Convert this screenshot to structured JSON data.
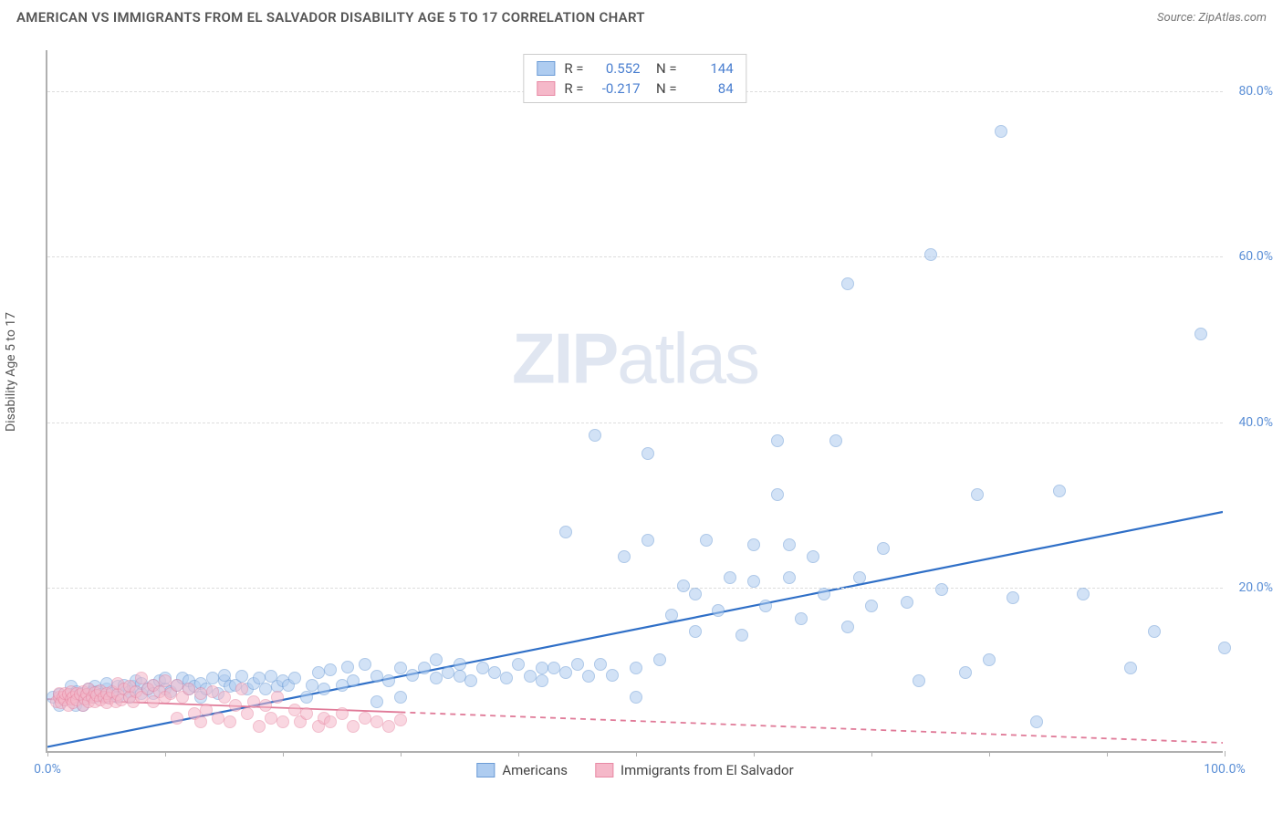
{
  "title": "AMERICAN VS IMMIGRANTS FROM EL SALVADOR DISABILITY AGE 5 TO 17 CORRELATION CHART",
  "source": "Source: ZipAtlas.com",
  "ylabel": "Disability Age 5 to 17",
  "watermark_bold": "ZIP",
  "watermark_light": "atlas",
  "chart": {
    "type": "scatter",
    "background_color": "#ffffff",
    "grid_color": "#dddddd",
    "axis_color": "#b0b0b0",
    "label_color": "#5b8fd6",
    "xlim": [
      0,
      100
    ],
    "ylim": [
      0,
      85
    ],
    "xticks": [
      0,
      10,
      20,
      30,
      40,
      50,
      60,
      70,
      80,
      90,
      100
    ],
    "xtick_labels": {
      "0": "0.0%",
      "100": "100.0%"
    },
    "yticks": [
      20,
      40,
      60,
      80
    ],
    "ytick_labels": {
      "20": "20.0%",
      "40": "40.0%",
      "60": "60.0%",
      "80": "80.0%"
    },
    "marker_radius": 7,
    "marker_stroke_width": 1.2,
    "series": [
      {
        "name": "Americans",
        "fill": "#aeccf0",
        "stroke": "#6c9cd6",
        "fill_opacity": 0.55,
        "R": "0.552",
        "N": "144",
        "trend": {
          "x1": 0,
          "y1": 0.5,
          "x2": 100,
          "y2": 29,
          "color": "#2f6fc7",
          "width": 2.2,
          "dash": "none"
        },
        "points": [
          [
            0.5,
            6.5
          ],
          [
            1,
            6.8
          ],
          [
            1,
            5.5
          ],
          [
            1.5,
            6.2
          ],
          [
            2,
            6.8
          ],
          [
            2,
            7.8
          ],
          [
            2.4,
            5.5
          ],
          [
            2.5,
            7.2
          ],
          [
            3,
            6.5
          ],
          [
            3,
            5.5
          ],
          [
            3,
            7.0
          ],
          [
            3.3,
            6.8
          ],
          [
            3.5,
            7.5
          ],
          [
            3.8,
            7.2
          ],
          [
            4,
            6.5
          ],
          [
            4,
            7.8
          ],
          [
            4.3,
            7.2
          ],
          [
            4.5,
            6.8
          ],
          [
            5,
            7.5
          ],
          [
            5,
            6.5
          ],
          [
            5,
            8.2
          ],
          [
            5.5,
            7.0
          ],
          [
            6,
            7.8
          ],
          [
            6,
            6.5
          ],
          [
            6.5,
            8.0
          ],
          [
            7,
            7.2
          ],
          [
            7,
            6.5
          ],
          [
            7.3,
            7.8
          ],
          [
            7.5,
            8.5
          ],
          [
            8,
            7.0
          ],
          [
            8,
            8.2
          ],
          [
            8.5,
            7.5
          ],
          [
            9,
            8.0
          ],
          [
            9,
            7.0
          ],
          [
            9.5,
            8.5
          ],
          [
            10,
            7.5
          ],
          [
            10,
            8.8
          ],
          [
            10.5,
            7.2
          ],
          [
            11,
            8.0
          ],
          [
            11.5,
            8.8
          ],
          [
            12,
            7.5
          ],
          [
            12,
            8.5
          ],
          [
            12.5,
            7.8
          ],
          [
            13,
            6.5
          ],
          [
            13,
            8.2
          ],
          [
            13.5,
            7.5
          ],
          [
            14,
            8.8
          ],
          [
            14.5,
            7.0
          ],
          [
            15,
            8.5
          ],
          [
            15,
            9.2
          ],
          [
            15.5,
            7.8
          ],
          [
            16,
            8.0
          ],
          [
            16.5,
            9.0
          ],
          [
            17,
            7.5
          ],
          [
            17.5,
            8.2
          ],
          [
            18,
            8.8
          ],
          [
            18.5,
            7.5
          ],
          [
            19,
            9.0
          ],
          [
            19.5,
            7.8
          ],
          [
            20,
            8.5
          ],
          [
            20.5,
            8.0
          ],
          [
            21,
            8.8
          ],
          [
            22,
            6.5
          ],
          [
            22.5,
            8.0
          ],
          [
            23,
            9.5
          ],
          [
            23.5,
            7.5
          ],
          [
            24,
            9.8
          ],
          [
            25,
            8.0
          ],
          [
            25.5,
            10.2
          ],
          [
            26,
            8.5
          ],
          [
            27,
            10.5
          ],
          [
            28,
            6.0
          ],
          [
            28,
            9.0
          ],
          [
            29,
            8.5
          ],
          [
            30,
            10.0
          ],
          [
            30,
            6.5
          ],
          [
            31,
            9.2
          ],
          [
            32,
            10.0
          ],
          [
            33,
            11.0
          ],
          [
            33,
            8.8
          ],
          [
            34,
            9.5
          ],
          [
            35,
            9.0
          ],
          [
            35,
            10.5
          ],
          [
            36,
            8.5
          ],
          [
            37,
            10.0
          ],
          [
            38,
            9.5
          ],
          [
            39,
            8.8
          ],
          [
            40,
            10.5
          ],
          [
            41,
            9.0
          ],
          [
            42,
            10.0
          ],
          [
            42,
            8.5
          ],
          [
            43,
            10.0
          ],
          [
            44,
            9.5
          ],
          [
            44,
            26.5
          ],
          [
            45,
            10.5
          ],
          [
            46,
            9.0
          ],
          [
            46.5,
            38.2
          ],
          [
            47,
            10.5
          ],
          [
            48,
            9.2
          ],
          [
            49,
            23.5
          ],
          [
            50,
            10.0
          ],
          [
            50,
            6.5
          ],
          [
            51,
            25.5
          ],
          [
            51,
            36.0
          ],
          [
            52,
            11.0
          ],
          [
            53,
            16.5
          ],
          [
            54,
            20.0
          ],
          [
            55,
            14.5
          ],
          [
            55,
            19.0
          ],
          [
            56,
            25.5
          ],
          [
            57,
            17.0
          ],
          [
            58,
            21.0
          ],
          [
            59,
            14.0
          ],
          [
            60,
            20.5
          ],
          [
            60,
            25.0
          ],
          [
            61,
            17.5
          ],
          [
            62,
            31.0
          ],
          [
            62,
            37.5
          ],
          [
            63,
            21.0
          ],
          [
            63,
            25.0
          ],
          [
            64,
            16.0
          ],
          [
            65,
            23.5
          ],
          [
            66,
            19.0
          ],
          [
            67,
            37.5
          ],
          [
            68,
            15.0
          ],
          [
            68,
            56.5
          ],
          [
            69,
            21.0
          ],
          [
            70,
            17.5
          ],
          [
            71,
            24.5
          ],
          [
            73,
            18.0
          ],
          [
            74,
            8.5
          ],
          [
            75,
            60.0
          ],
          [
            76,
            19.5
          ],
          [
            78,
            9.5
          ],
          [
            79,
            31.0
          ],
          [
            80,
            11.0
          ],
          [
            81,
            75.0
          ],
          [
            82,
            18.5
          ],
          [
            84,
            3.5
          ],
          [
            86,
            31.5
          ],
          [
            88,
            19.0
          ],
          [
            92,
            10.0
          ],
          [
            94,
            14.5
          ],
          [
            98,
            50.5
          ],
          [
            100,
            12.5
          ]
        ]
      },
      {
        "name": "Immigrants from El Salvador",
        "fill": "#f5b8c9",
        "stroke": "#e88aa5",
        "fill_opacity": 0.55,
        "R": "-0.217",
        "N": "84",
        "trend": {
          "x1": 0,
          "y1": 6.3,
          "x2": 100,
          "y2": 1.0,
          "color": "#e07a98",
          "width": 1.8,
          "dash": "solid_then_dash",
          "solid_until": 30
        },
        "points": [
          [
            0.8,
            6.0
          ],
          [
            1.0,
            6.5
          ],
          [
            1.0,
            7.0
          ],
          [
            1.2,
            5.8
          ],
          [
            1.3,
            6.5
          ],
          [
            1.5,
            6.2
          ],
          [
            1.5,
            7.0
          ],
          [
            1.8,
            6.8
          ],
          [
            1.8,
            5.5
          ],
          [
            2.0,
            6.3
          ],
          [
            2.0,
            7.2
          ],
          [
            2.2,
            6.5
          ],
          [
            2.2,
            5.8
          ],
          [
            2.5,
            7.0
          ],
          [
            2.5,
            6.2
          ],
          [
            2.8,
            6.8
          ],
          [
            3.0,
            5.5
          ],
          [
            3.0,
            7.2
          ],
          [
            3.2,
            6.3
          ],
          [
            3.3,
            6.8
          ],
          [
            3.5,
            6.0
          ],
          [
            3.5,
            7.5
          ],
          [
            3.8,
            6.5
          ],
          [
            4.0,
            6.0
          ],
          [
            4.0,
            7.1
          ],
          [
            4.2,
            6.7
          ],
          [
            4.5,
            6.2
          ],
          [
            4.5,
            7.3
          ],
          [
            4.8,
            6.5
          ],
          [
            5.0,
            5.8
          ],
          [
            5.0,
            7.0
          ],
          [
            5.3,
            6.4
          ],
          [
            5.5,
            7.2
          ],
          [
            5.8,
            6.0
          ],
          [
            6.0,
            6.8
          ],
          [
            6.0,
            8.2
          ],
          [
            6.3,
            6.2
          ],
          [
            6.5,
            7.5
          ],
          [
            7.0,
            6.5
          ],
          [
            7.0,
            7.8
          ],
          [
            7.3,
            6.0
          ],
          [
            7.5,
            7.2
          ],
          [
            8.0,
            8.8
          ],
          [
            8.0,
            6.5
          ],
          [
            8.5,
            7.5
          ],
          [
            9.0,
            6.0
          ],
          [
            9.0,
            8.0
          ],
          [
            9.5,
            7.2
          ],
          [
            10.0,
            6.5
          ],
          [
            10.0,
            8.5
          ],
          [
            10.5,
            7.0
          ],
          [
            11.0,
            4.0
          ],
          [
            11.0,
            8.0
          ],
          [
            11.5,
            6.5
          ],
          [
            12.0,
            7.5
          ],
          [
            12.5,
            4.5
          ],
          [
            13.0,
            7.0
          ],
          [
            13.0,
            3.5
          ],
          [
            13.5,
            5.0
          ],
          [
            14.0,
            7.2
          ],
          [
            14.5,
            4.0
          ],
          [
            15.0,
            6.5
          ],
          [
            15.5,
            3.5
          ],
          [
            16.0,
            5.5
          ],
          [
            16.5,
            7.5
          ],
          [
            17.0,
            4.5
          ],
          [
            17.5,
            6.0
          ],
          [
            18.0,
            3.0
          ],
          [
            18.5,
            5.5
          ],
          [
            19.0,
            4.0
          ],
          [
            19.5,
            6.5
          ],
          [
            20.0,
            3.5
          ],
          [
            21.0,
            5.0
          ],
          [
            21.5,
            3.5
          ],
          [
            22.0,
            4.5
          ],
          [
            23.0,
            3.0
          ],
          [
            23.5,
            4.0
          ],
          [
            24.0,
            3.5
          ],
          [
            25.0,
            4.5
          ],
          [
            26.0,
            3.0
          ],
          [
            27.0,
            4.0
          ],
          [
            28.0,
            3.5
          ],
          [
            29.0,
            3.0
          ],
          [
            30.0,
            3.8
          ]
        ]
      }
    ]
  },
  "legend_bottom": [
    {
      "label": "Americans",
      "fill": "#aeccf0",
      "stroke": "#6c9cd6"
    },
    {
      "label": "Immigrants from El Salvador",
      "fill": "#f5b8c9",
      "stroke": "#e88aa5"
    }
  ]
}
